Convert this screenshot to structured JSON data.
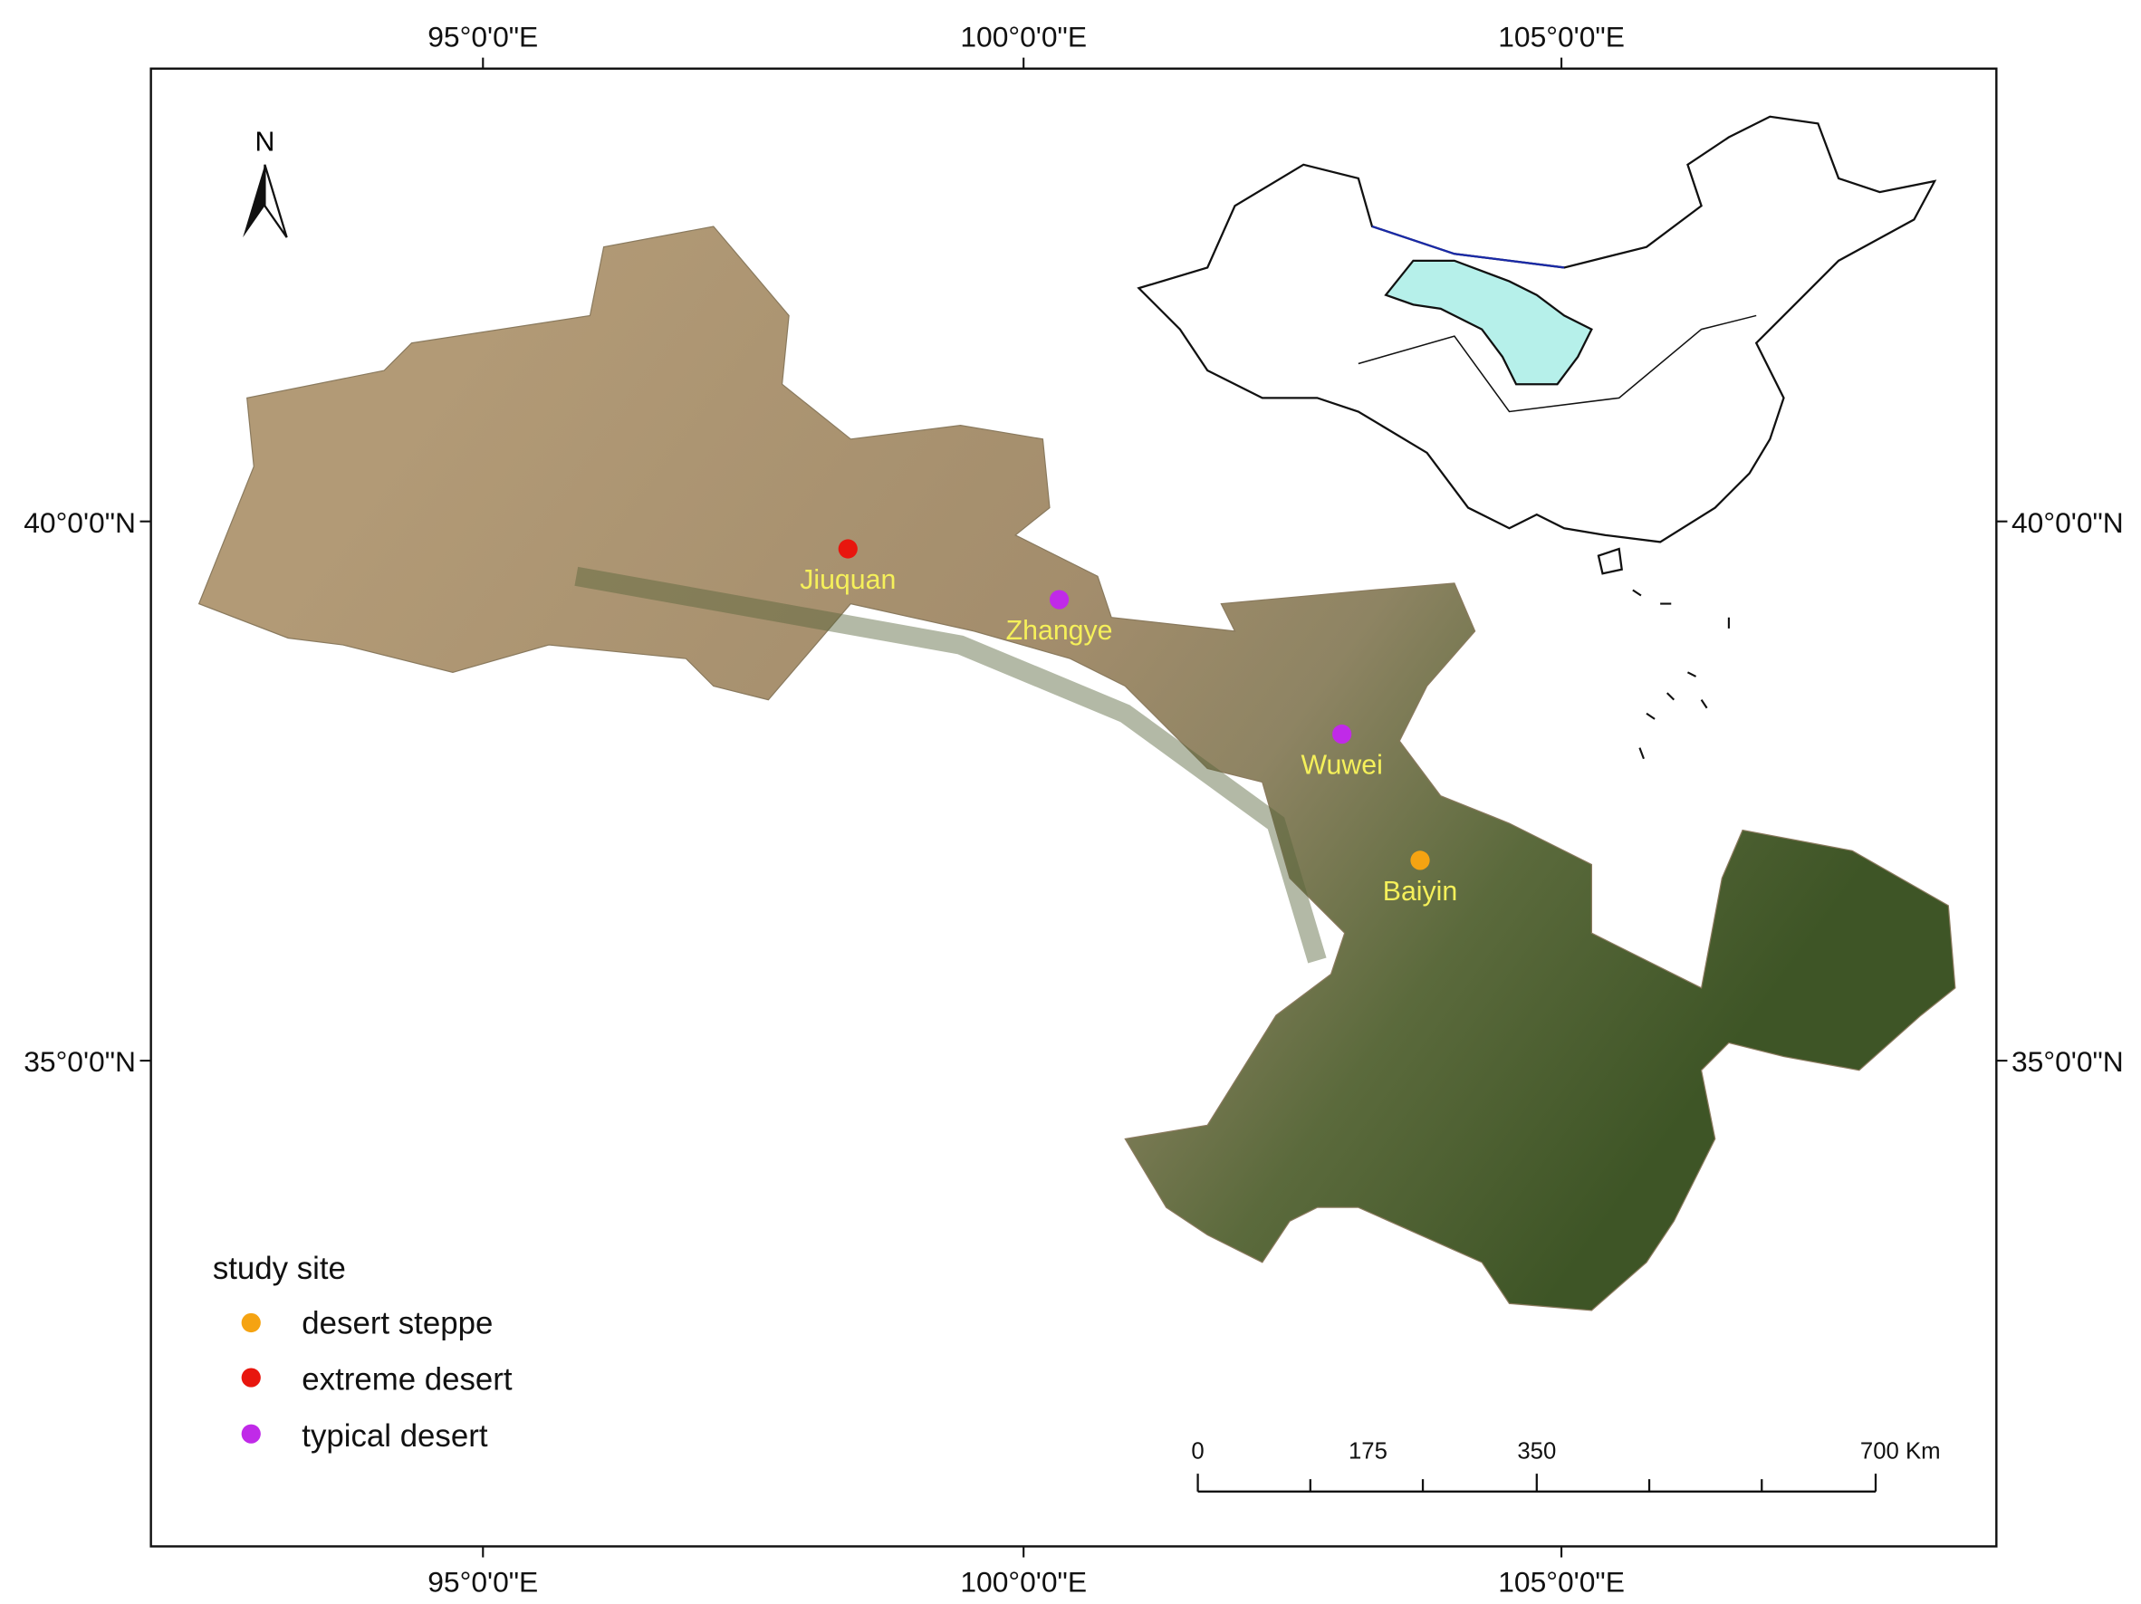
{
  "graticule": {
    "top": [
      "95°0'0\"E",
      "100°0'0\"E",
      "105°0'0\"E"
    ],
    "bottom": [
      "95°0'0\"E",
      "100°0'0\"E",
      "105°0'0\"E"
    ],
    "left": [
      "40°0'0\"N",
      "35°0'0\"N"
    ],
    "right": [
      "40°0'0\"N",
      "35°0'0\"N"
    ]
  },
  "north_arrow": "N",
  "sites": [
    "Jiuquan",
    "Zhangye",
    "Wuwei",
    "Baiyin"
  ],
  "legend": {
    "title": "study site",
    "items": [
      "desert steppe",
      "extreme desert",
      "typical desert"
    ]
  },
  "scale_bar": {
    "labels": [
      "0",
      "175",
      "350",
      "700 Km"
    ]
  }
}
